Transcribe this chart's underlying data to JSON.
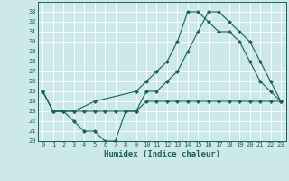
{
  "title": "",
  "xlabel": "Humidex (Indice chaleur)",
  "ylabel": "",
  "bg_color": "#cce8e8",
  "line_color": "#1a6060",
  "grid_color": "#ffffff",
  "xlim": [
    -0.5,
    23.5
  ],
  "ylim": [
    20,
    34
  ],
  "yticks": [
    20,
    21,
    22,
    23,
    24,
    25,
    26,
    27,
    28,
    29,
    30,
    31,
    32,
    33
  ],
  "xticks": [
    0,
    1,
    2,
    3,
    4,
    5,
    6,
    7,
    8,
    9,
    10,
    11,
    12,
    13,
    14,
    15,
    16,
    17,
    18,
    19,
    20,
    21,
    22,
    23
  ],
  "line1_x": [
    0,
    1,
    2,
    3,
    4,
    5,
    6,
    7,
    8,
    9,
    10,
    11,
    12,
    13,
    14,
    15,
    16,
    17,
    18,
    19,
    20,
    21,
    22,
    23
  ],
  "line1_y": [
    25,
    23,
    23,
    22,
    21,
    21,
    20,
    20,
    23,
    23,
    25,
    25,
    26,
    27,
    29,
    31,
    33,
    33,
    32,
    31,
    30,
    28,
    26,
    24
  ],
  "line2_x": [
    0,
    1,
    3,
    5,
    9,
    10,
    11,
    12,
    13,
    14,
    15,
    16,
    17,
    18,
    19,
    20,
    21,
    22,
    23
  ],
  "line2_y": [
    25,
    23,
    23,
    24,
    25,
    26,
    27,
    28,
    30,
    33,
    33,
    32,
    31,
    31,
    30,
    28,
    26,
    25,
    24
  ],
  "line3_x": [
    0,
    1,
    2,
    3,
    4,
    5,
    6,
    7,
    8,
    9,
    10,
    11,
    12,
    13,
    14,
    15,
    16,
    17,
    18,
    19,
    20,
    21,
    22,
    23
  ],
  "line3_y": [
    25,
    23,
    23,
    23,
    23,
    23,
    23,
    23,
    23,
    23,
    24,
    24,
    24,
    24,
    24,
    24,
    24,
    24,
    24,
    24,
    24,
    24,
    24,
    24
  ]
}
